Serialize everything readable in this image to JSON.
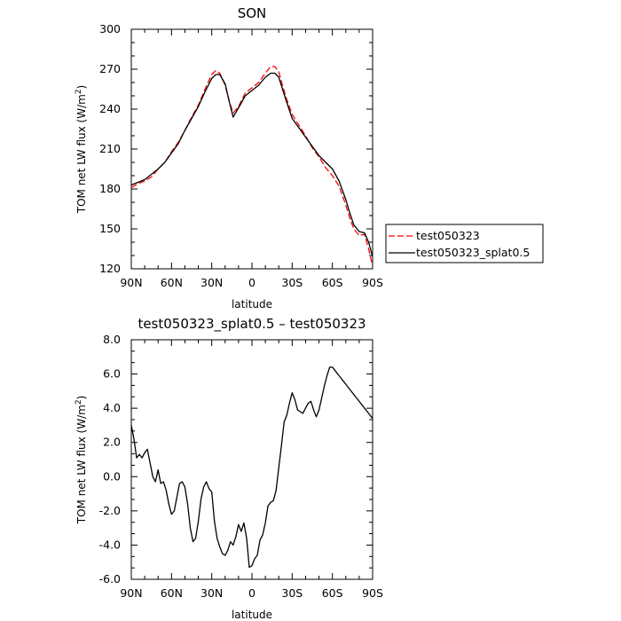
{
  "chart_data": [
    {
      "type": "line",
      "title": "SON",
      "xlabel": "latitude",
      "ylabel": "TOM net LW flux (W/m",
      "ylabel_sup": "2",
      "ylabel_end": ")",
      "xlim": [
        -90,
        90
      ],
      "ylim": [
        120,
        300
      ],
      "xticks": [
        -90,
        -60,
        -30,
        0,
        30,
        60,
        90
      ],
      "xtick_labels": [
        "90N",
        "60N",
        "30N",
        "0",
        "30S",
        "60S",
        "90S"
      ],
      "yticks": [
        120,
        150,
        180,
        210,
        240,
        270,
        300
      ],
      "ytick_labels": [
        "120",
        "150",
        "180",
        "210",
        "240",
        "270",
        "300"
      ],
      "legend_position": "right-outside",
      "series": [
        {
          "name": "test050323",
          "color": "#ff0000",
          "style": "dashed",
          "x": [
            -90,
            -85,
            -80,
            -75,
            -70,
            -65,
            -60,
            -55,
            -50,
            -45,
            -40,
            -35,
            -30,
            -27,
            -24,
            -20,
            -17,
            -14,
            -10,
            -5,
            0,
            5,
            10,
            14,
            17,
            20,
            25,
            30,
            35,
            40,
            45,
            50,
            55,
            60,
            65,
            70,
            73,
            76,
            80,
            84,
            87,
            90
          ],
          "y": [
            181,
            184,
            186,
            189,
            195,
            200,
            208,
            215,
            224,
            234,
            243,
            255,
            266,
            269,
            267,
            258,
            246,
            237,
            242,
            252,
            256,
            260,
            267,
            272,
            272,
            268,
            250,
            236,
            228,
            220,
            211,
            204,
            196,
            190,
            182,
            168,
            158,
            150,
            145,
            146,
            135,
            122
          ]
        },
        {
          "name": "test050323_splat0.5",
          "color": "#000000",
          "style": "solid",
          "x": [
            -90,
            -85,
            -80,
            -75,
            -70,
            -65,
            -60,
            -55,
            -50,
            -45,
            -40,
            -35,
            -30,
            -27,
            -24,
            -20,
            -17,
            -14,
            -10,
            -5,
            0,
            5,
            10,
            14,
            17,
            20,
            25,
            30,
            35,
            40,
            45,
            50,
            55,
            60,
            65,
            70,
            73,
            76,
            80,
            84,
            87,
            90
          ],
          "y": [
            183,
            185,
            187,
            191,
            195,
            200,
            207,
            214,
            224,
            233,
            242,
            253,
            263,
            266,
            266,
            259,
            246,
            234,
            241,
            250,
            254,
            258,
            264,
            267,
            267,
            264,
            248,
            233,
            226,
            219,
            212,
            205,
            200,
            195,
            186,
            172,
            162,
            153,
            148,
            147,
            140,
            129
          ]
        }
      ]
    },
    {
      "type": "line",
      "title": "test050323_splat0.5 – test050323",
      "xlabel": "latitude",
      "ylabel": "TOM net LW flux (W/m",
      "ylabel_sup": "2",
      "ylabel_end": ")",
      "xlim": [
        -90,
        90
      ],
      "ylim": [
        -6,
        8
      ],
      "xticks": [
        -90,
        -60,
        -30,
        0,
        30,
        60,
        90
      ],
      "xtick_labels": [
        "90N",
        "60N",
        "30N",
        "0",
        "30S",
        "60S",
        "90S"
      ],
      "yticks": [
        -6,
        -4,
        -2,
        0,
        2,
        4,
        6,
        8
      ],
      "ytick_labels": [
        "-6.0",
        "-4.0",
        "-2.0",
        "0.0",
        "2.0",
        "4.0",
        "6.0",
        "8.0"
      ],
      "series": [
        {
          "color": "#000000",
          "style": "solid",
          "x": [
            -90,
            -88,
            -86,
            -84,
            -82,
            -80,
            -78,
            -76,
            -74,
            -72,
            -70,
            -68,
            -66,
            -64,
            -62,
            -60,
            -58,
            -56,
            -54,
            -52,
            -50,
            -48,
            -46,
            -44,
            -42,
            -40,
            -38,
            -36,
            -34,
            -32,
            -30,
            -28,
            -26,
            -24,
            -22,
            -20,
            -18,
            -16,
            -14,
            -12,
            -10,
            -8,
            -6,
            -4,
            -2,
            0,
            2,
            4,
            6,
            8,
            10,
            12,
            14,
            16,
            18,
            20,
            22,
            24,
            26,
            28,
            30,
            32,
            34,
            36,
            38,
            40,
            42,
            44,
            46,
            48,
            50,
            52,
            54,
            56,
            58,
            60,
            62,
            64,
            66,
            68,
            70,
            72,
            74,
            76,
            78,
            80,
            82,
            84,
            86,
            88,
            90
          ],
          "y": [
            3.0,
            2.2,
            1.1,
            1.3,
            1.1,
            1.4,
            1.6,
            0.8,
            0.0,
            -0.3,
            0.4,
            -0.4,
            -0.3,
            -0.8,
            -1.6,
            -2.2,
            -2.0,
            -1.2,
            -0.4,
            -0.3,
            -0.6,
            -1.6,
            -3.0,
            -3.8,
            -3.6,
            -2.6,
            -1.3,
            -0.6,
            -0.3,
            -0.7,
            -0.9,
            -2.6,
            -3.6,
            -4.1,
            -4.5,
            -4.6,
            -4.3,
            -3.8,
            -4.0,
            -3.5,
            -2.8,
            -3.2,
            -2.7,
            -3.6,
            -5.3,
            -5.2,
            -4.8,
            -4.6,
            -3.7,
            -3.4,
            -2.7,
            -1.7,
            -1.5,
            -1.4,
            -0.8,
            0.5,
            1.8,
            3.2,
            3.6,
            4.3,
            4.9,
            4.5,
            3.9,
            3.8,
            3.7,
            4.0,
            4.3,
            4.4,
            3.9,
            3.5,
            3.9,
            4.6,
            5.3,
            5.9,
            6.4,
            6.4,
            6.2,
            6.0,
            5.8,
            5.6,
            5.4,
            5.2,
            5.0,
            4.8,
            4.6,
            4.4,
            4.2,
            4.0,
            3.8,
            3.6,
            3.4
          ]
        }
      ]
    }
  ]
}
